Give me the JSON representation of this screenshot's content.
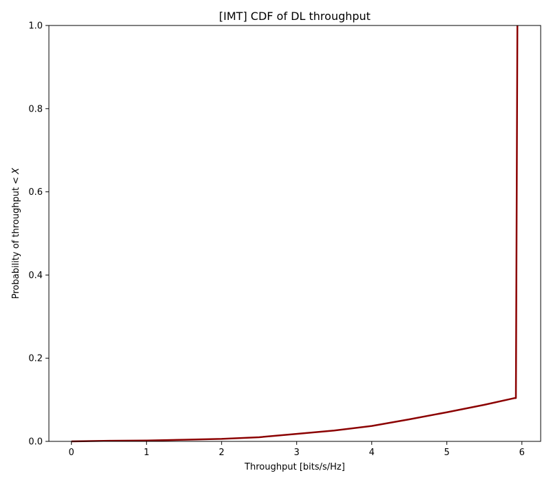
{
  "chart_data": {
    "type": "line",
    "title": "[IMT] CDF of DL throughput",
    "xlabel": "Throughput [bits/s/Hz]",
    "ylabel_prefix": "Probability of throughput < ",
    "ylabel_var": "X",
    "xlim": [
      -0.3,
      6.25
    ],
    "ylim": [
      0,
      1.0
    ],
    "xticks": [
      0,
      1,
      2,
      3,
      4,
      5,
      6
    ],
    "yticks": [
      0.0,
      0.2,
      0.4,
      0.6,
      0.8,
      1.0
    ],
    "xtick_labels": [
      "0",
      "1",
      "2",
      "3",
      "4",
      "5",
      "6"
    ],
    "ytick_labels": [
      "0.0",
      "0.2",
      "0.4",
      "0.6",
      "0.8",
      "1.0"
    ],
    "grid": false,
    "series": [
      {
        "color": "#8b0000",
        "x": [
          0,
          0.5,
          1.0,
          1.5,
          2.0,
          2.5,
          3.0,
          3.5,
          4.0,
          4.5,
          5.0,
          5.5,
          5.9,
          5.92,
          5.94
        ],
        "y": [
          0,
          0.0015,
          0.002,
          0.004,
          0.006,
          0.01,
          0.018,
          0.026,
          0.037,
          0.053,
          0.07,
          0.088,
          0.104,
          0.104,
          1.0
        ]
      }
    ]
  }
}
